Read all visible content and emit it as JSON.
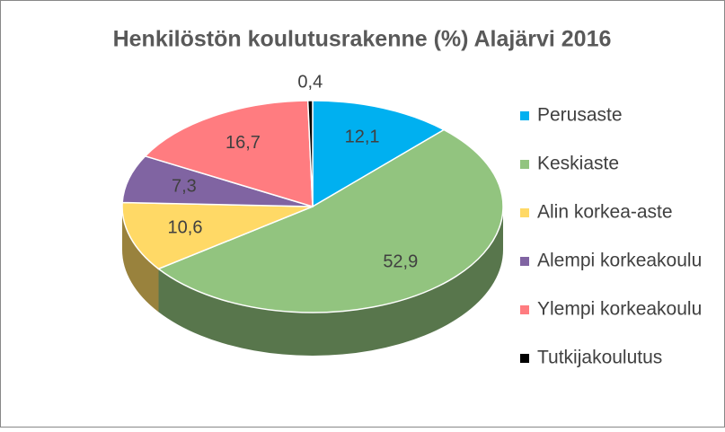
{
  "chart_data": {
    "type": "pie",
    "title": "Henkilöstön koulutusrakenne (%) Alajärvi 2016",
    "categories": [
      "Perusaste",
      "Keskiaste",
      "Alin korkea-aste",
      "Alempi korkeakoulu",
      "Ylempi korkeakoulu",
      "Tutkijakoulutus"
    ],
    "values": [
      12.1,
      52.9,
      10.6,
      7.3,
      16.7,
      0.4
    ],
    "value_labels": [
      "12,1",
      "52,9",
      "10,6",
      "7,3",
      "16,7",
      "0,4"
    ],
    "colors": [
      "#00b0f0",
      "#92c47f",
      "#ffd966",
      "#8064a2",
      "#ff7c80",
      "#000000"
    ],
    "legend": "right"
  }
}
